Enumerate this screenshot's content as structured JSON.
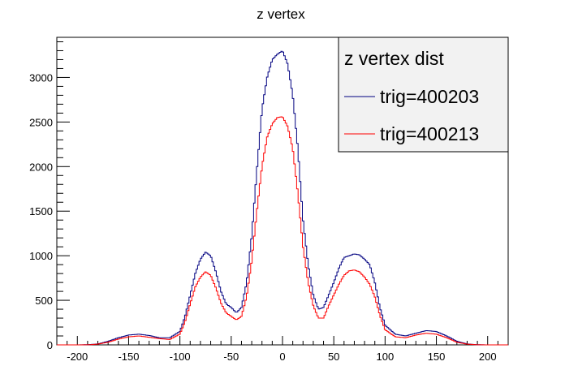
{
  "chart_data": {
    "type": "line",
    "title": "z vertex",
    "xlabel": "",
    "ylabel": "",
    "xlim": [
      -220,
      220
    ],
    "ylim": [
      0,
      3450
    ],
    "x_ticks": [
      -200,
      -150,
      -100,
      -50,
      0,
      50,
      100,
      150,
      200
    ],
    "y_ticks": [
      0,
      500,
      1000,
      1500,
      2000,
      2500,
      3000
    ],
    "grid": false,
    "legend": {
      "title": "z vertex dist",
      "placement": "top-right"
    },
    "x": [
      -220,
      -210,
      -200,
      -190,
      -180,
      -170,
      -160,
      -150,
      -140,
      -130,
      -120,
      -110,
      -100,
      -95,
      -90,
      -85,
      -80,
      -75,
      -70,
      -65,
      -60,
      -55,
      -50,
      -45,
      -40,
      -35,
      -30,
      -25,
      -20,
      -15,
      -10,
      -5,
      0,
      5,
      10,
      15,
      20,
      25,
      30,
      35,
      40,
      45,
      50,
      55,
      60,
      65,
      70,
      75,
      80,
      85,
      90,
      95,
      100,
      110,
      120,
      130,
      140,
      150,
      160,
      170,
      180,
      190,
      200,
      210,
      220
    ],
    "series": [
      {
        "name": "trig=400203",
        "color": "#000080",
        "values": [
          0,
          0,
          0,
          2,
          10,
          40,
          80,
          110,
          120,
          105,
          80,
          80,
          150,
          320,
          560,
          800,
          960,
          1040,
          1000,
          820,
          600,
          460,
          420,
          360,
          420,
          700,
          1220,
          1960,
          2640,
          3000,
          3200,
          3260,
          3300,
          3150,
          2800,
          2200,
          1400,
          900,
          560,
          400,
          420,
          560,
          700,
          860,
          980,
          1000,
          1020,
          1010,
          960,
          900,
          700,
          420,
          220,
          120,
          100,
          130,
          160,
          150,
          100,
          40,
          10,
          2,
          0,
          0,
          0
        ]
      },
      {
        "name": "trig=400213",
        "color": "#ff0000",
        "values": [
          0,
          0,
          0,
          1,
          8,
          30,
          65,
          90,
          100,
          85,
          70,
          60,
          120,
          260,
          460,
          650,
          760,
          820,
          780,
          640,
          470,
          360,
          320,
          280,
          320,
          540,
          940,
          1500,
          2000,
          2330,
          2480,
          2550,
          2560,
          2450,
          2200,
          1700,
          1100,
          700,
          440,
          300,
          300,
          440,
          560,
          680,
          780,
          830,
          840,
          820,
          760,
          680,
          540,
          330,
          170,
          90,
          80,
          110,
          130,
          120,
          80,
          30,
          8,
          1,
          0,
          0,
          0
        ]
      }
    ]
  }
}
